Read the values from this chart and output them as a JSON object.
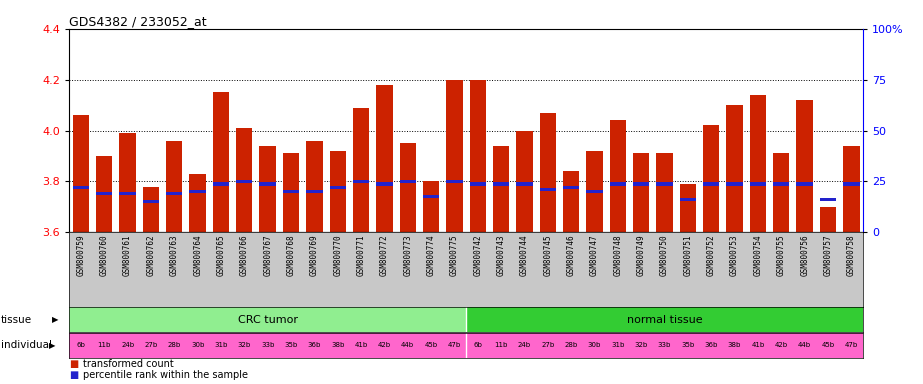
{
  "title": "GDS4382 / 233052_at",
  "gsm_ids": [
    "GSM800759",
    "GSM800760",
    "GSM800761",
    "GSM800762",
    "GSM800763",
    "GSM800764",
    "GSM800765",
    "GSM800766",
    "GSM800767",
    "GSM800768",
    "GSM800769",
    "GSM800770",
    "GSM800771",
    "GSM800772",
    "GSM800773",
    "GSM800774",
    "GSM800775",
    "GSM800742",
    "GSM800743",
    "GSM800744",
    "GSM800745",
    "GSM800746",
    "GSM800747",
    "GSM800748",
    "GSM800749",
    "GSM800750",
    "GSM800751",
    "GSM800752",
    "GSM800753",
    "GSM800754",
    "GSM800755",
    "GSM800756",
    "GSM800757",
    "GSM800758"
  ],
  "transformed_count": [
    4.06,
    3.9,
    3.99,
    3.78,
    3.96,
    3.83,
    4.15,
    4.01,
    3.94,
    3.91,
    3.96,
    3.92,
    4.09,
    4.18,
    3.95,
    3.8,
    4.2,
    4.2,
    3.94,
    4.0,
    4.07,
    3.84,
    3.92,
    4.04,
    3.91,
    3.91,
    3.79,
    4.02,
    4.1,
    4.14,
    3.91,
    4.12,
    3.7,
    3.94
  ],
  "percentile_rank": [
    3.778,
    3.752,
    3.752,
    3.72,
    3.752,
    3.76,
    3.79,
    3.8,
    3.79,
    3.76,
    3.76,
    3.778,
    3.8,
    3.79,
    3.8,
    3.742,
    3.8,
    3.79,
    3.79,
    3.79,
    3.77,
    3.778,
    3.76,
    3.79,
    3.79,
    3.79,
    3.73,
    3.79,
    3.79,
    3.79,
    3.79,
    3.79,
    3.73,
    3.79
  ],
  "individuals": [
    "6b",
    "11b",
    "24b",
    "27b",
    "28b",
    "30b",
    "31b",
    "32b",
    "33b",
    "35b",
    "36b",
    "38b",
    "41b",
    "42b",
    "44b",
    "45b",
    "47b",
    "6b",
    "11b",
    "24b",
    "27b",
    "28b",
    "30b",
    "31b",
    "32b",
    "33b",
    "35b",
    "36b",
    "38b",
    "41b",
    "42b",
    "44b",
    "45b",
    "47b"
  ],
  "group_crc_color": "#90EE90",
  "group_normal_color": "#33CC33",
  "ind_color_crc": "#FF66CC",
  "ind_color_normal": "#FF66CC",
  "ylim_left": [
    3.6,
    4.4
  ],
  "ylim_right": [
    0,
    100
  ],
  "yticks_left": [
    3.6,
    3.8,
    4.0,
    4.2,
    4.4
  ],
  "yticks_right": [
    0,
    25,
    50,
    75,
    100
  ],
  "ytick_right_labels": [
    "0",
    "25",
    "50",
    "75",
    "100%"
  ],
  "bar_color": "#CC2200",
  "marker_color": "#2222CC",
  "bg_gray": "#C8C8C8",
  "background_color": "#ffffff"
}
